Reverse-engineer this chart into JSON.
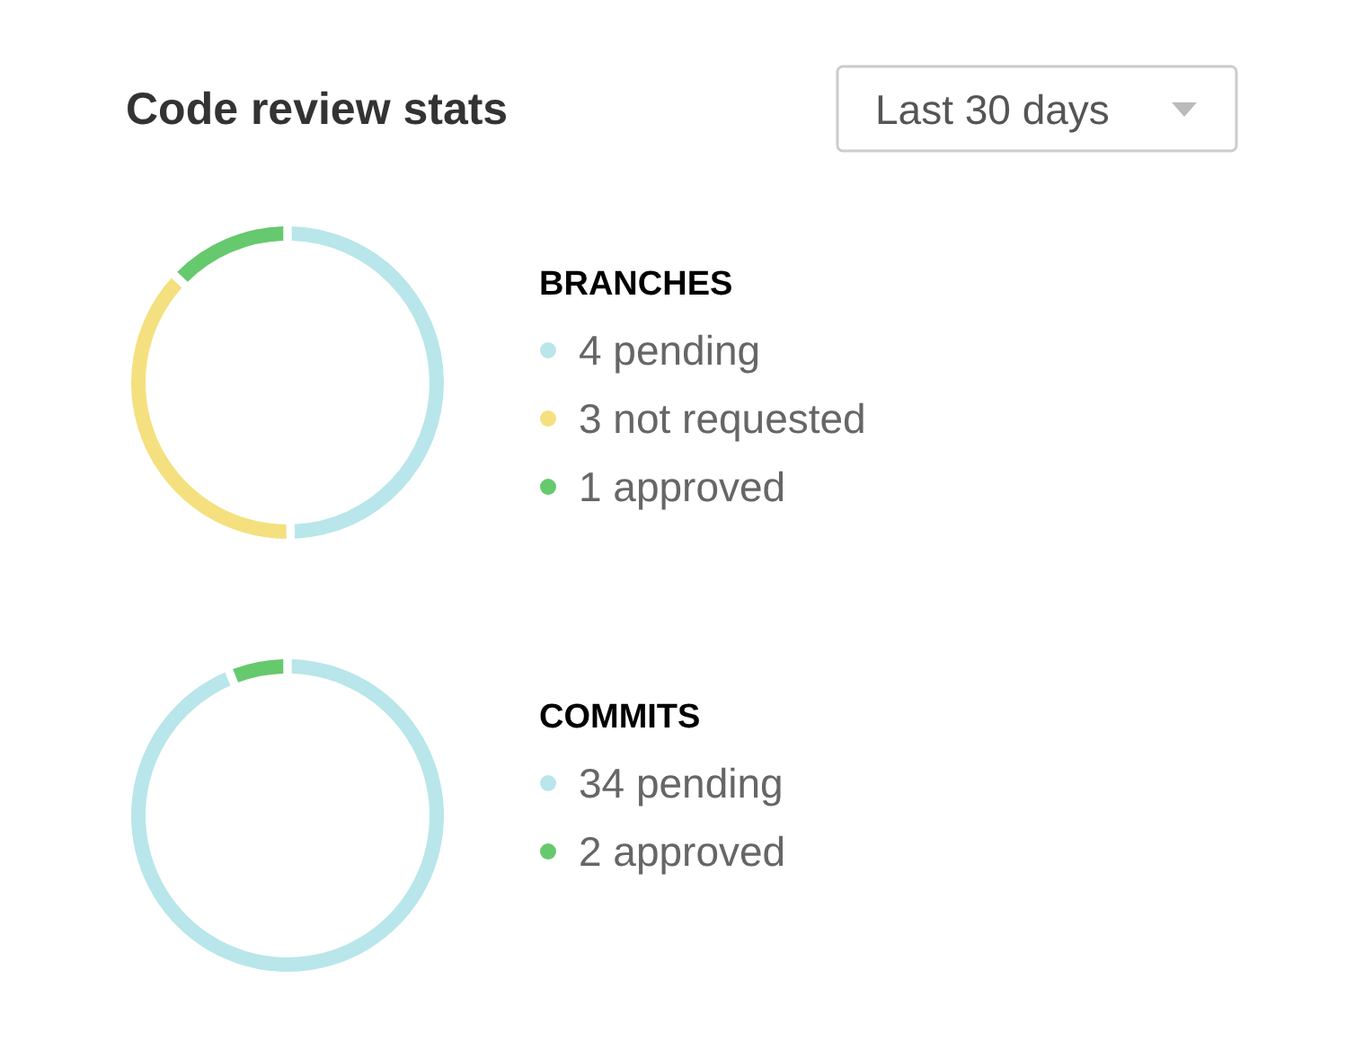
{
  "chart_data": [
    {
      "type": "other",
      "title": "Code review stats",
      "annotations": [
        "Last 30 days"
      ]
    },
    {
      "type": "donut",
      "title": "BRANCHES",
      "categories": [
        "4 pending",
        "3 not requested",
        "1 approved"
      ],
      "values": [
        4,
        3,
        1
      ],
      "colors": [
        "#b8e6ea",
        "#f5e07f",
        "#66c96e"
      ],
      "legend": "right"
    },
    {
      "type": "donut",
      "title": "COMMITS",
      "categories": [
        "34 pending",
        "2 approved"
      ],
      "values": [
        34,
        2
      ],
      "colors": [
        "#b8e6ea",
        "#66c96e"
      ],
      "legend": "right"
    }
  ]
}
